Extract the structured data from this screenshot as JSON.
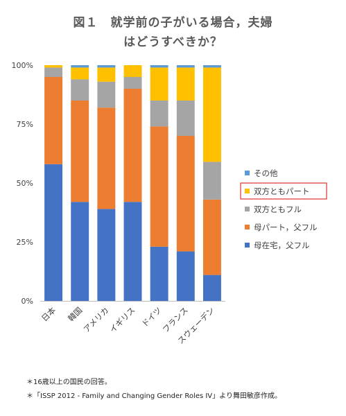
{
  "title_line1": "図１　就学前の子がいる場合，夫婦",
  "title_line2": "はどうすべきか？",
  "chart_data": {
    "type": "bar",
    "stacked": true,
    "categories": [
      "日本",
      "韓国",
      "アメリカ",
      "イギリス",
      "ドイツ",
      "フランス",
      "スウェーデン"
    ],
    "yticks": [
      "0%",
      "25%",
      "50%",
      "75%",
      "100%"
    ],
    "ylim": [
      0,
      100
    ],
    "series": [
      {
        "name": "母在宅，父フル",
        "color": "#4472C4",
        "values": [
          58,
          42,
          39,
          42,
          23,
          21,
          11
        ]
      },
      {
        "name": "母パート，父フル",
        "color": "#ED7D31",
        "values": [
          37,
          43,
          43,
          48,
          51,
          49,
          32
        ]
      },
      {
        "name": "双方ともフル",
        "color": "#A5A5A5",
        "values": [
          4,
          9,
          11,
          5,
          11,
          15,
          16
        ]
      },
      {
        "name": "双方ともパート",
        "color": "#FFC000",
        "values": [
          1,
          5,
          6,
          5,
          14,
          14,
          40
        ]
      },
      {
        "name": "その他",
        "color": "#5B9BD5",
        "values": [
          0,
          1,
          1,
          0,
          1,
          1,
          1
        ]
      }
    ],
    "legend_order": [
      4,
      3,
      2,
      1,
      0
    ],
    "highlighted_legend": 3,
    "highlight_color": "#E03030",
    "gridlines": false
  },
  "notes": [
    "＊16歳以上の国民の回答。",
    "＊「ISSP 2012 - Family and Changing Gender Roles IV」より舞田敏彦作成。"
  ]
}
